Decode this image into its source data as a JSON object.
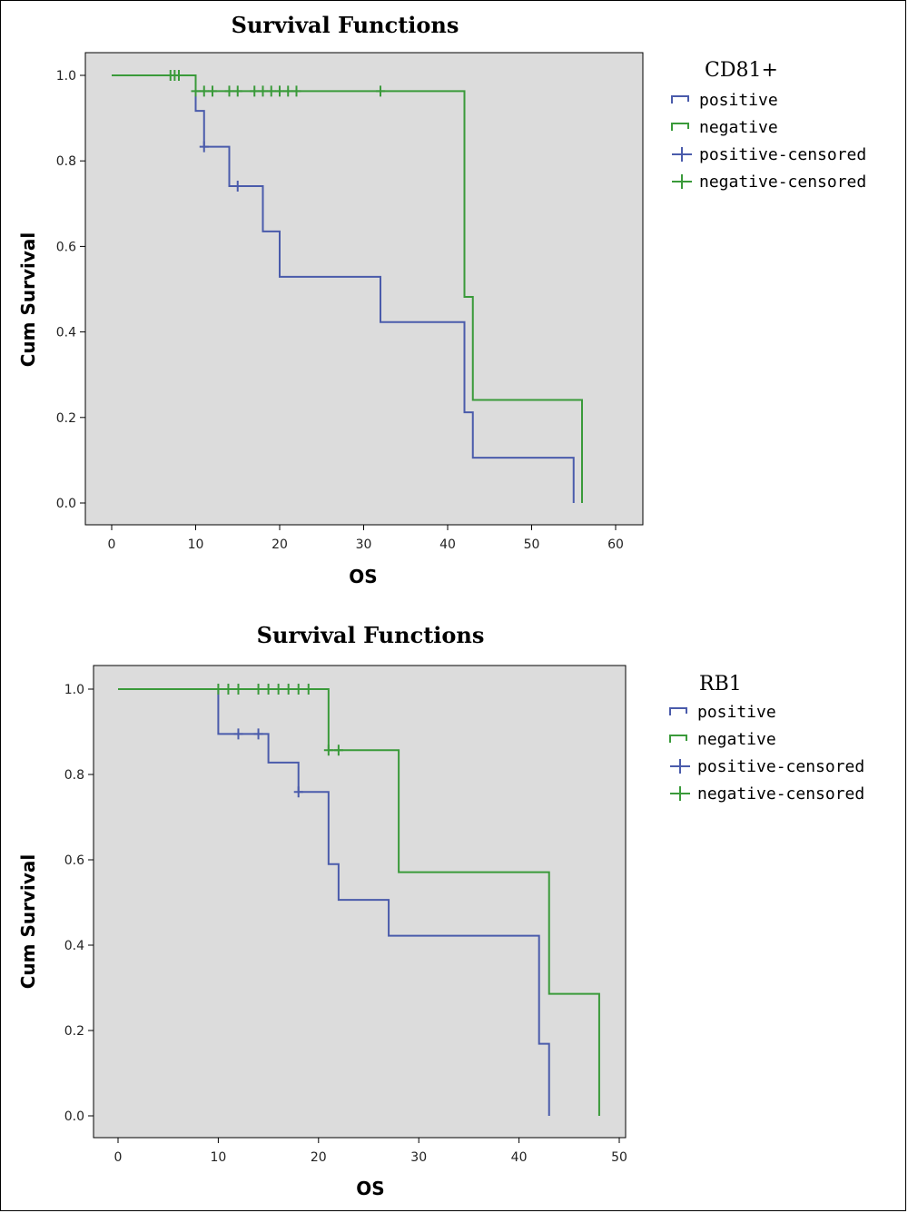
{
  "chart_data": [
    {
      "type": "line",
      "title": "Survival Functions",
      "xlabel": "OS",
      "ylabel": "Cum Survival",
      "xlim": [
        0,
        60
      ],
      "ylim": [
        0,
        1.0
      ],
      "xticks": [
        0,
        10,
        20,
        30,
        40,
        50,
        60
      ],
      "yticks": [
        0.0,
        0.2,
        0.4,
        0.6,
        0.8,
        1.0
      ],
      "xtick_labels": [
        "0",
        "10",
        "20",
        "30",
        "40",
        "50",
        "60"
      ],
      "ytick_labels": [
        "0.0",
        "0.2",
        "0.4",
        "0.6",
        "0.8",
        "1.0"
      ],
      "legend_title": "CD81+",
      "legend_position": "right",
      "legend": [
        "positive",
        "negative",
        "positive-censored",
        "negative-censored"
      ],
      "series": [
        {
          "name": "positive",
          "color": "#4a5bab",
          "steps": [
            [
              0,
              1.0
            ],
            [
              10,
              0.917
            ],
            [
              11,
              0.833
            ],
            [
              14,
              0.741
            ],
            [
              18,
              0.635
            ],
            [
              20,
              0.529
            ],
            [
              32,
              0.423
            ],
            [
              42,
              0.212
            ],
            [
              43,
              0.106
            ],
            [
              55,
              0.0
            ]
          ],
          "censored": [
            [
              11,
              0.833
            ],
            [
              15,
              0.741
            ]
          ]
        },
        {
          "name": "negative",
          "color": "#3a9a3a",
          "steps": [
            [
              0,
              1.0
            ],
            [
              10,
              0.963
            ],
            [
              42,
              0.482
            ],
            [
              43,
              0.241
            ],
            [
              56,
              0.0
            ]
          ],
          "censored": [
            [
              7,
              1.0
            ],
            [
              7.5,
              1.0
            ],
            [
              8,
              1.0
            ],
            [
              10,
              0.963
            ],
            [
              11,
              0.963
            ],
            [
              12,
              0.963
            ],
            [
              14,
              0.963
            ],
            [
              15,
              0.963
            ],
            [
              17,
              0.963
            ],
            [
              18,
              0.963
            ],
            [
              19,
              0.963
            ],
            [
              20,
              0.963
            ],
            [
              21,
              0.963
            ],
            [
              22,
              0.963
            ],
            [
              32,
              0.963
            ]
          ]
        }
      ]
    },
    {
      "type": "line",
      "title": "Survival Functions",
      "xlabel": "OS",
      "ylabel": "Cum Survival",
      "xlim": [
        0,
        50
      ],
      "ylim": [
        0,
        1.0
      ],
      "xticks": [
        0,
        10,
        20,
        30,
        40,
        50
      ],
      "yticks": [
        0.0,
        0.2,
        0.4,
        0.6,
        0.8,
        1.0
      ],
      "xtick_labels": [
        "0",
        "10",
        "20",
        "30",
        "40",
        "50"
      ],
      "ytick_labels": [
        "0.0",
        "0.2",
        "0.4",
        "0.6",
        "0.8",
        "1.0"
      ],
      "legend_title": "RB1",
      "legend_position": "right",
      "legend": [
        "positive",
        "negative",
        "positive-censored",
        "negative-censored"
      ],
      "series": [
        {
          "name": "positive",
          "color": "#4a5bab",
          "steps": [
            [
              0,
              1.0
            ],
            [
              10,
              0.895
            ],
            [
              15,
              0.828
            ],
            [
              18,
              0.759
            ],
            [
              21,
              0.59
            ],
            [
              22,
              0.506
            ],
            [
              27,
              0.422
            ],
            [
              42,
              0.169
            ],
            [
              43,
              0.0
            ]
          ],
          "censored": [
            [
              12,
              0.895
            ],
            [
              14,
              0.895
            ],
            [
              18,
              0.759
            ]
          ]
        },
        {
          "name": "negative",
          "color": "#3a9a3a",
          "steps": [
            [
              0,
              1.0
            ],
            [
              21,
              0.857
            ],
            [
              28,
              0.571
            ],
            [
              43,
              0.286
            ],
            [
              48,
              0.0
            ]
          ],
          "censored": [
            [
              10,
              1.0
            ],
            [
              11,
              1.0
            ],
            [
              12,
              1.0
            ],
            [
              14,
              1.0
            ],
            [
              15,
              1.0
            ],
            [
              16,
              1.0
            ],
            [
              17,
              1.0
            ],
            [
              18,
              1.0
            ],
            [
              19,
              1.0
            ],
            [
              21,
              0.857
            ],
            [
              22,
              0.857
            ]
          ]
        }
      ]
    }
  ]
}
